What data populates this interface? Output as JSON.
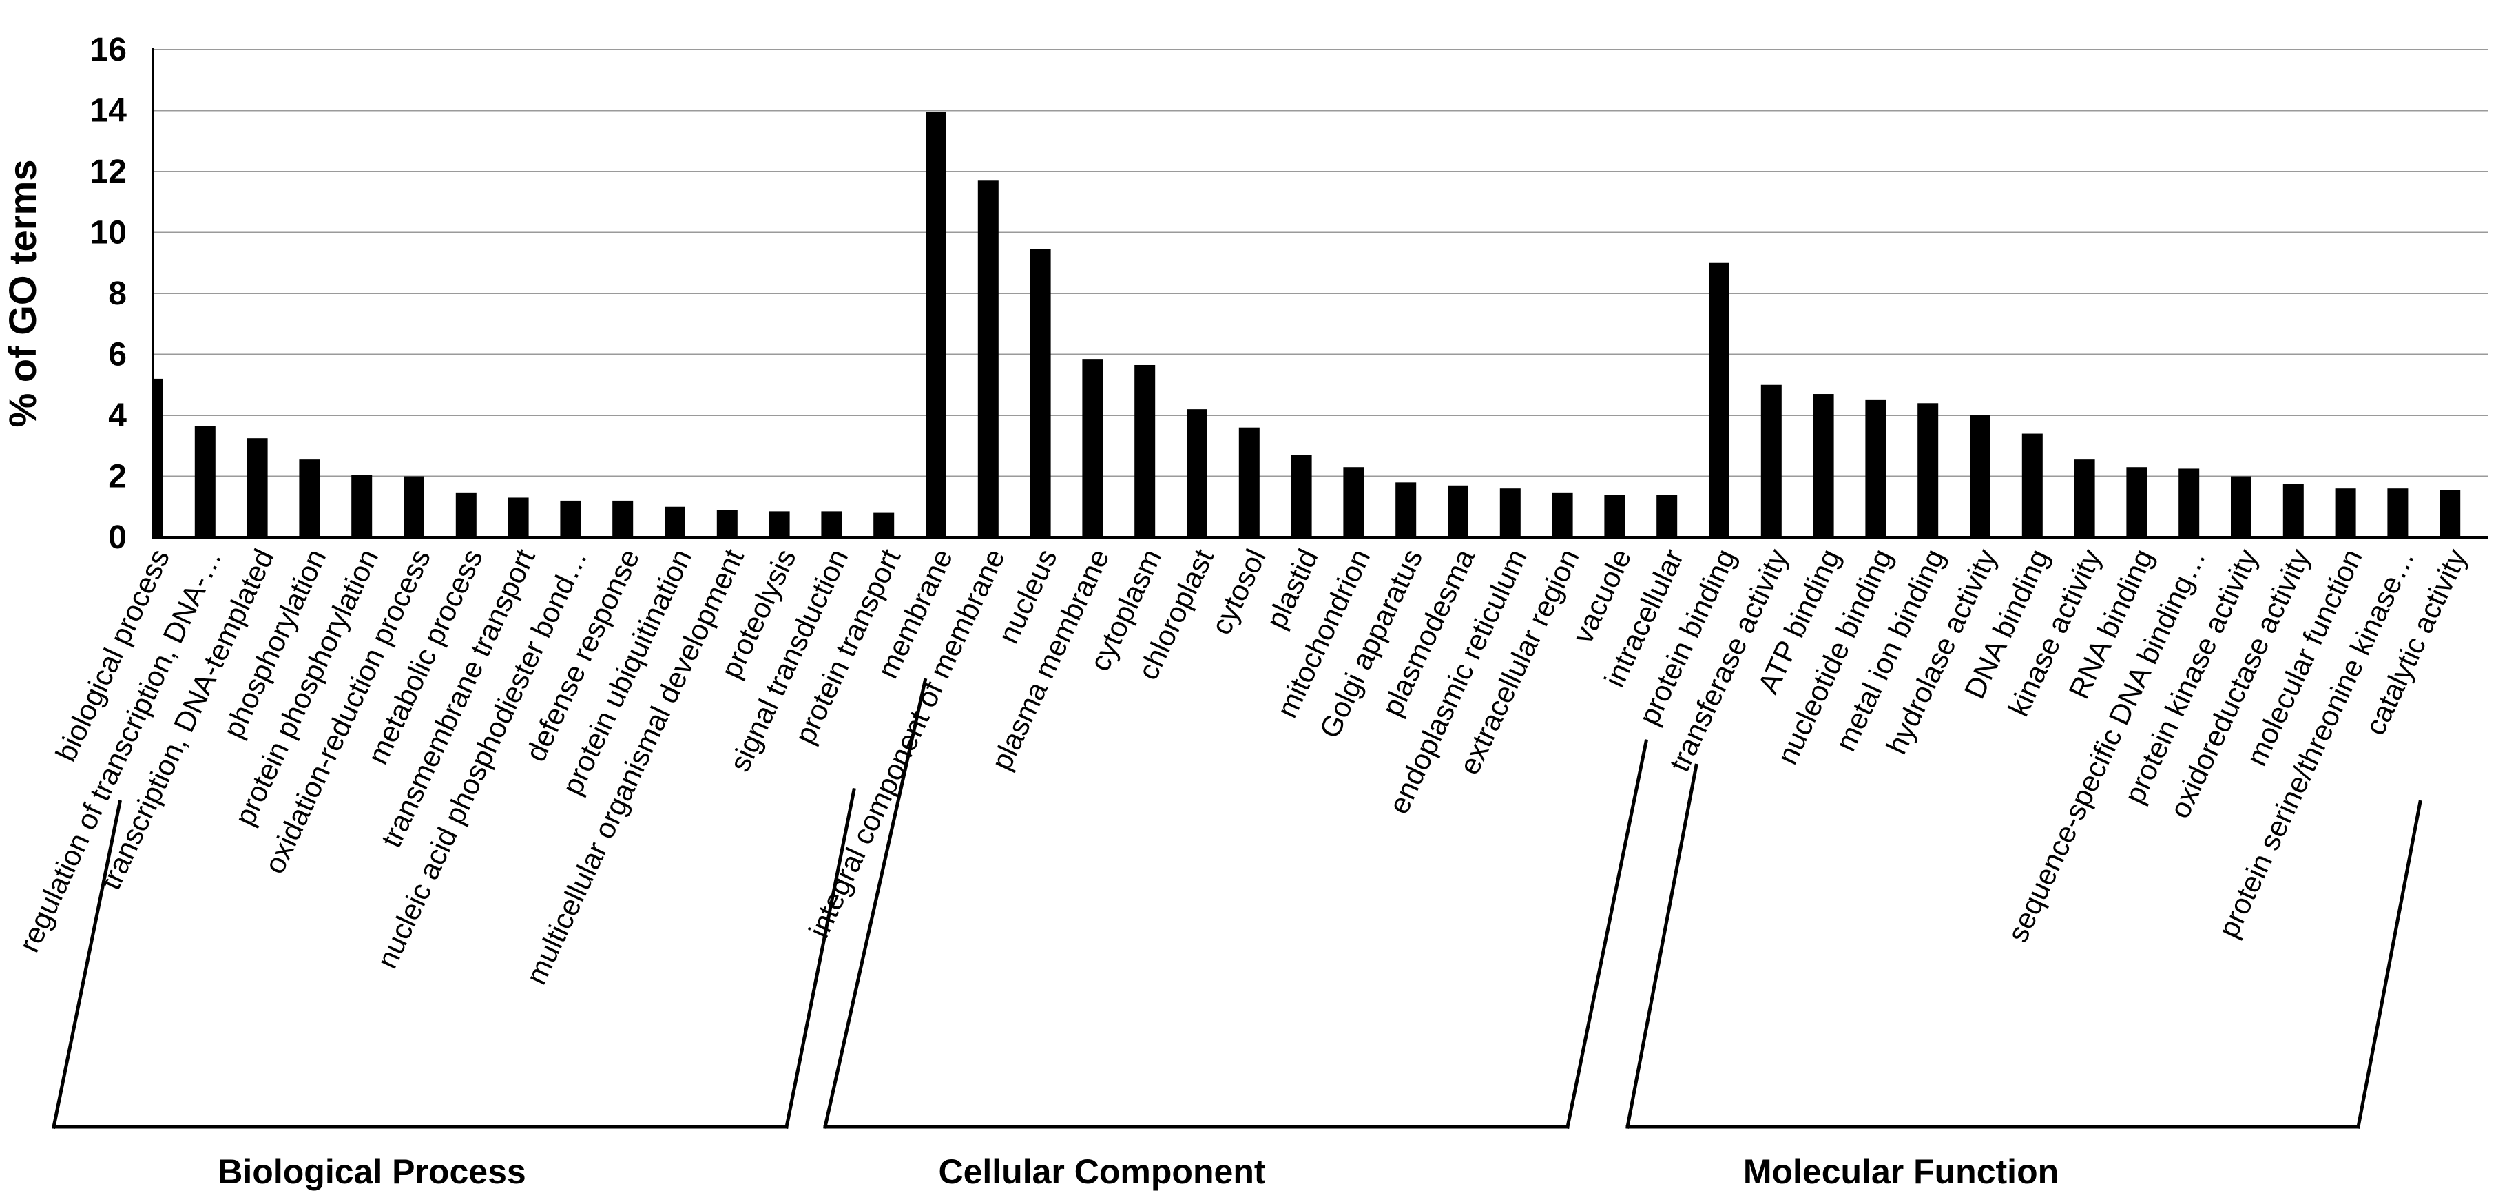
{
  "chart_data": {
    "type": "bar",
    "ylabel": "% of GO terms",
    "ylim": [
      0,
      16
    ],
    "yticks": [
      0,
      2,
      4,
      6,
      8,
      10,
      12,
      14,
      16
    ],
    "grid": "horizontal",
    "legend": "none",
    "bar_color": "#000000",
    "gridline_color": "#9a9a9a",
    "axis_color": "#000000",
    "groups": [
      {
        "name": "Biological Process",
        "categories": [
          "biological process",
          "regulation of transcription, DNA-…",
          "transcription, DNA-templated",
          "phosphorylation",
          "protein phosphorylation",
          "oxidation-reduction process",
          "metabolic process",
          "transmembrane transport",
          "nucleic acid phosphodiester bond…",
          "defense response",
          "protein ubiquitination",
          "multicellular organismal development",
          "proteolysis",
          "signal transduction",
          "protein transport"
        ],
        "values": [
          5.2,
          3.65,
          3.25,
          2.55,
          2.05,
          2.0,
          1.45,
          1.3,
          1.2,
          1.2,
          1.0,
          0.9,
          0.85,
          0.85,
          0.8
        ]
      },
      {
        "name": "Cellular Component",
        "categories": [
          "membrane",
          "integral component of membrane",
          "nucleus",
          "plasma membrane",
          "cytoplasm",
          "chloroplast",
          "cytosol",
          "plastid",
          "mitochondrion",
          "Golgi apparatus",
          "plasmodesma",
          "endoplasmic reticulum",
          "extracellular region",
          "vacuole",
          "intracellular"
        ],
        "values": [
          13.95,
          11.7,
          9.45,
          5.85,
          5.65,
          4.2,
          3.6,
          2.7,
          2.3,
          1.8,
          1.7,
          1.6,
          1.45,
          1.4,
          1.4
        ]
      },
      {
        "name": "Molecular Function",
        "categories": [
          "protein binding",
          "transferase activity",
          "ATP binding",
          "nucleotide binding",
          "metal ion binding",
          "hydrolase activity",
          "DNA binding",
          "kinase activity",
          "RNA binding",
          "sequence-specific DNA binding…",
          "protein kinase activity",
          "oxidoreductase activity",
          "molecular function",
          "protein serine/threonine kinase…",
          "catalytic activity"
        ],
        "values": [
          9.0,
          5.0,
          4.7,
          4.5,
          4.4,
          4.0,
          3.4,
          2.55,
          2.3,
          2.25,
          2.0,
          1.75,
          1.6,
          1.6,
          1.55
        ]
      }
    ]
  }
}
